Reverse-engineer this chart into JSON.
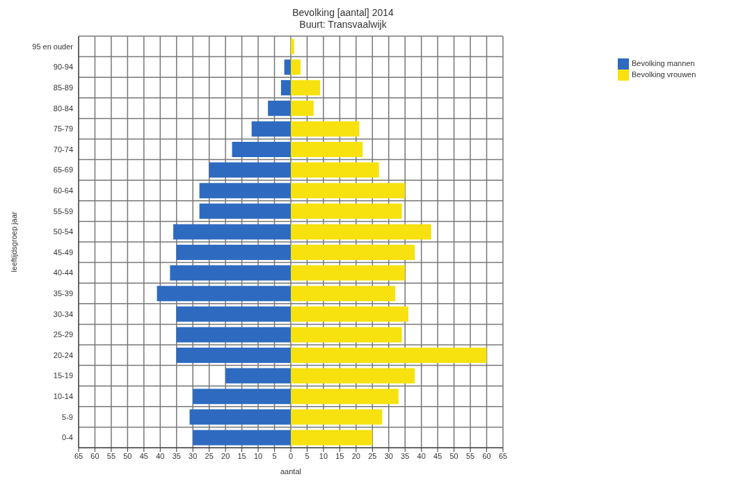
{
  "chart_data": {
    "type": "bar",
    "title": "Bevolking [aantal] 2014",
    "subtitle": "Buurt: Transvaalwijk",
    "xlabel": "aantal",
    "ylabel": "leeftijdsgroep jaar",
    "orientation": "horizontal",
    "stacked": true,
    "grid": true,
    "legend": "top right",
    "categories": [
      "95 en ouder",
      "90-94",
      "85-89",
      "80-84",
      "75-79",
      "70-74",
      "65-69",
      "60-64",
      "55-59",
      "50-54",
      "45-49",
      "40-44",
      "35-39",
      "30-34",
      "25-29",
      "20-24",
      "15-19",
      "10-14",
      "5-9",
      "0-4"
    ],
    "series": [
      {
        "name": "Bevolking mannen",
        "color": "#2e6bc0",
        "values": [
          0,
          -2,
          -3,
          -7,
          -12,
          -18,
          -25,
          -28,
          -28,
          -36,
          -35,
          -37,
          -41,
          -35,
          -35,
          -35,
          -20,
          -30,
          -31,
          -30
        ]
      },
      {
        "name": "Bevolking vrouwen",
        "color": "#f7e10f",
        "values": [
          1,
          3,
          9,
          7,
          21,
          22,
          27,
          35,
          34,
          43,
          38,
          35,
          32,
          36,
          34,
          60,
          38,
          33,
          28,
          25
        ]
      }
    ],
    "xlim": [
      -65,
      65
    ],
    "xticks": [
      {
        "value": -65,
        "label": "65"
      },
      {
        "value": -60,
        "label": "60"
      },
      {
        "value": -55,
        "label": "55"
      },
      {
        "value": -50,
        "label": "50"
      },
      {
        "value": -45,
        "label": "45"
      },
      {
        "value": -40,
        "label": "40"
      },
      {
        "value": -35,
        "label": "35"
      },
      {
        "value": -30,
        "label": "30"
      },
      {
        "value": -25,
        "label": "25"
      },
      {
        "value": -20,
        "label": "20"
      },
      {
        "value": -15,
        "label": "15"
      },
      {
        "value": -10,
        "label": "10"
      },
      {
        "value": -5,
        "label": "5"
      },
      0,
      5,
      10,
      15,
      20,
      25,
      30,
      35,
      40,
      45,
      50,
      55,
      60,
      65
    ]
  }
}
